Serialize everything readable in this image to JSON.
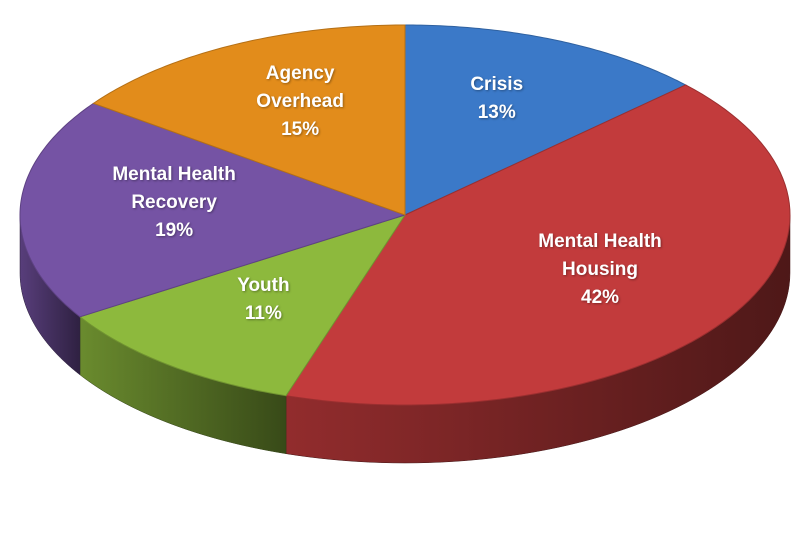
{
  "chart_data": {
    "type": "pie",
    "categories": [
      "Crisis",
      "Mental Health Housing",
      "Youth",
      "Mental Health Recovery",
      "Agency Overhead"
    ],
    "values": [
      13,
      42,
      11,
      19,
      15
    ],
    "value_labels": [
      "13%",
      "42%",
      "11%",
      "19%",
      "15%"
    ],
    "colors": [
      "#3b79c8",
      "#c23b3c",
      "#8db93d",
      "#7553a4",
      "#e28c1b"
    ]
  }
}
